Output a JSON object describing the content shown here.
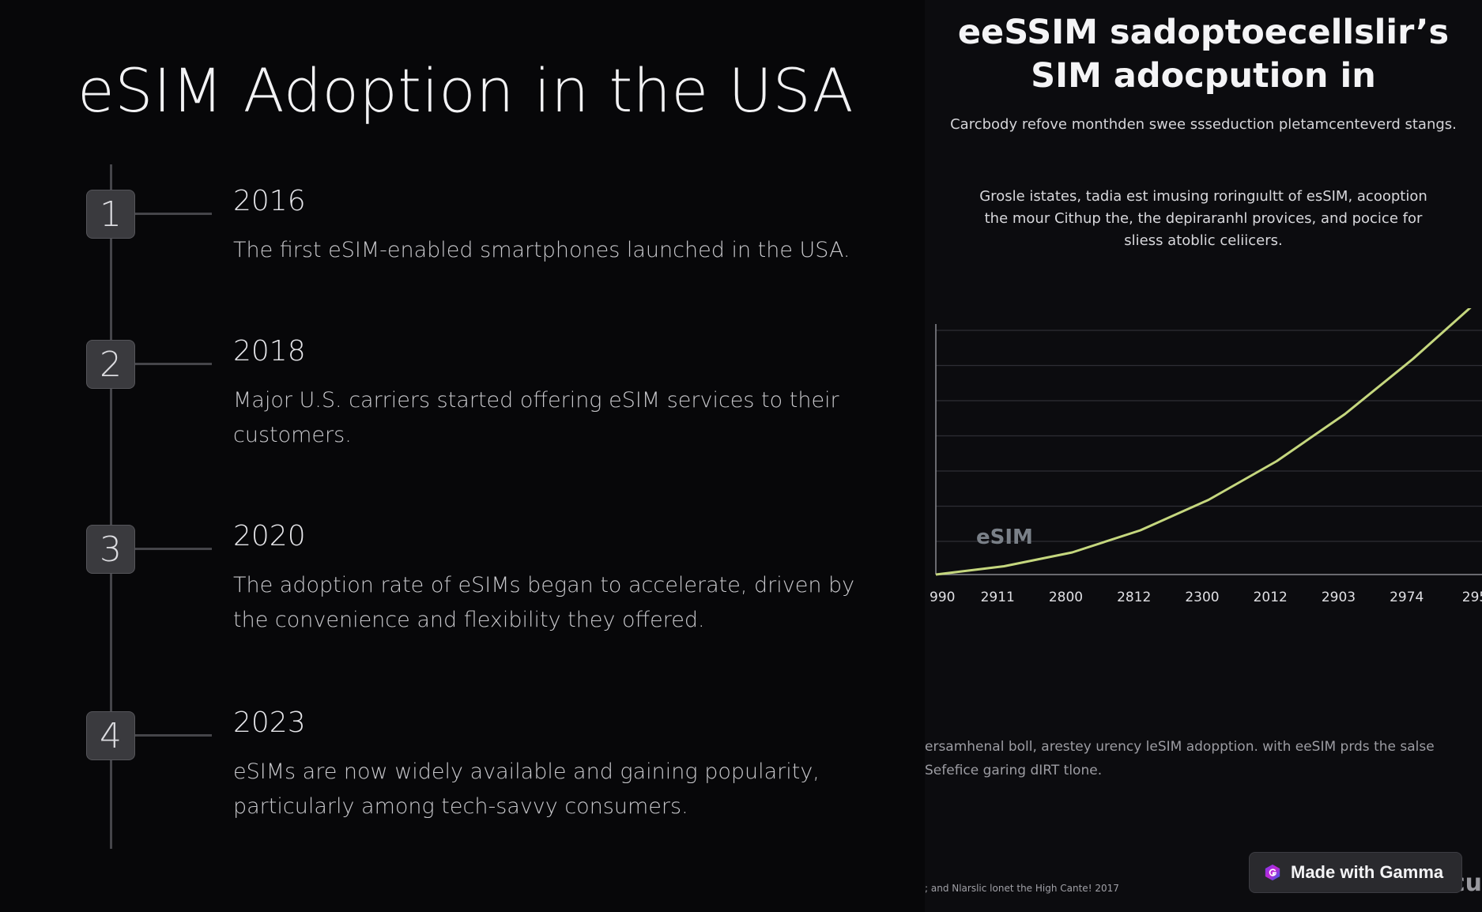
{
  "slide": {
    "title": "eSIM Adoption in the USA",
    "timeline": [
      {
        "number": "1",
        "year": "2016",
        "description": "The first eSIM-enabled smartphones launched in the USA."
      },
      {
        "number": "2",
        "year": "2018",
        "description": "Major U.S. carriers started offering eSIM services to their customers."
      },
      {
        "number": "3",
        "year": "2020",
        "description": "The adoption rate of eSIMs began to accelerate, driven by the convenience and flexibility they offered."
      },
      {
        "number": "4",
        "year": "2023",
        "description": "eSIMs are now widely available and gaining popularity, particularly among tech-savvy consumers."
      }
    ]
  },
  "panel": {
    "title_line1": "eeSSIM sadoptoecellslir’s",
    "title_line2": "SIM adocpution in",
    "subtitle": "Carcbody refove monthden swee ssseduction pletamcenteverd stangs.",
    "paragraph": "Grosle istates, tadia est imusing roringıultt of esSIM, acooption the mour Cithup the, the depiraranhl provices, and pocice for sliess atoblic celiicers.",
    "chart_label": "eSIM",
    "footer_line1": "ersamhenal boll, arestey urency leSIM adopption. with eeSIM prds the salse",
    "footer_line2": "Sefefice garing dIRT tlone.",
    "source": "; and Nlarslic lonet the High Cante! 2017",
    "edge_text": "cu"
  },
  "badge": {
    "label": "Made with Gamma",
    "icon": "gamma-logo-icon",
    "icon_colors": [
      "#7c3aed",
      "#c026d3",
      "#2563eb"
    ]
  },
  "colors": {
    "background": "#070709",
    "accent_line": "#c5d77e",
    "timeline": "#45454a"
  },
  "chart_data": {
    "type": "line",
    "categories": [
      "990",
      "2911",
      "2800",
      "2812",
      "2300",
      "2012",
      "2903",
      "2974",
      "295"
    ],
    "series": [
      {
        "values": [
          0,
          3,
          8,
          16,
          27,
          41,
          58,
          78,
          100
        ]
      }
    ],
    "grid": true,
    "ylim": [
      0,
      100
    ]
  }
}
